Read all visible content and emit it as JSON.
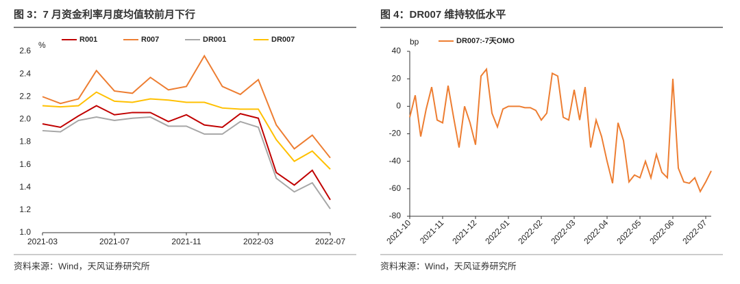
{
  "chart_data": [
    {
      "type": "line",
      "title": "图 3：7 月资金利率月度均值较前月下行",
      "source": "资料来源：Wind，天风证券研究所",
      "ylabel": "%",
      "categories": [
        "2021-03",
        null,
        null,
        null,
        "2021-07",
        null,
        null,
        null,
        "2021-11",
        null,
        null,
        null,
        "2022-03",
        null,
        null,
        null,
        "2022-07"
      ],
      "series": [
        {
          "name": "R001",
          "color": "#c00000",
          "values": [
            1.96,
            1.93,
            2.03,
            2.12,
            2.04,
            2.06,
            2.06,
            1.98,
            2.04,
            1.95,
            1.93,
            2.05,
            2.01,
            1.53,
            1.42,
            1.55,
            1.29
          ]
        },
        {
          "name": "R007",
          "color": "#ed7d31",
          "values": [
            2.2,
            2.14,
            2.18,
            2.43,
            2.25,
            2.23,
            2.37,
            2.26,
            2.29,
            2.56,
            2.29,
            2.22,
            2.35,
            1.95,
            1.74,
            1.86,
            1.66
          ]
        },
        {
          "name": "DR001",
          "color": "#a6a6a6",
          "values": [
            1.9,
            1.89,
            1.99,
            2.02,
            1.99,
            2.01,
            2.02,
            1.94,
            1.94,
            1.87,
            1.87,
            1.98,
            1.93,
            1.48,
            1.36,
            1.44,
            1.21
          ]
        },
        {
          "name": "DR007",
          "color": "#ffc000",
          "values": [
            2.12,
            2.11,
            2.12,
            2.24,
            2.16,
            2.15,
            2.18,
            2.17,
            2.15,
            2.15,
            2.1,
            2.09,
            2.09,
            1.82,
            1.63,
            1.72,
            1.56
          ]
        }
      ],
      "ylim": [
        1.0,
        2.6
      ],
      "yticks": [
        {
          "value": 1,
          "label": "1.0"
        },
        1.2,
        1.4,
        1.6,
        1.8,
        {
          "value": 2,
          "label": "2.0"
        },
        2.2,
        2.4,
        2.6
      ],
      "xlabel_rotation": 0,
      "grid": false
    },
    {
      "type": "line",
      "title": "图 4：DR007 维持较低水平",
      "source": "资料来源：Wind，天风证券研究所",
      "ylabel": "bp",
      "categories": [
        "2021-10",
        null,
        null,
        null,
        null,
        null,
        "2021-11",
        null,
        null,
        null,
        null,
        null,
        "2021-12",
        null,
        null,
        null,
        null,
        null,
        "2022-01",
        null,
        null,
        null,
        null,
        null,
        "2022-02",
        null,
        null,
        null,
        null,
        null,
        "2022-03",
        null,
        null,
        null,
        null,
        null,
        "2022-04",
        null,
        null,
        null,
        null,
        null,
        "2022-05",
        null,
        null,
        null,
        null,
        null,
        "2022-06",
        null,
        null,
        null,
        null,
        null,
        "2022-07",
        null
      ],
      "series": [
        {
          "name": "DR007:-7天OMO",
          "color": "#ed7d31",
          "values": [
            -8,
            8,
            -22,
            -2,
            14,
            -10,
            -12,
            15,
            -8,
            -30,
            0,
            -12,
            -28,
            22,
            27,
            -5,
            -15,
            -2,
            0,
            0,
            0,
            -1,
            -1,
            -3,
            -10,
            -5,
            24,
            22,
            -8,
            -10,
            12,
            -10,
            14,
            -30,
            -10,
            -22,
            -40,
            -56,
            -12,
            -25,
            -55,
            -50,
            -52,
            -40,
            -52,
            -35,
            -48,
            -52,
            20,
            -45,
            -55,
            -56,
            -52,
            -62,
            -55,
            -47
          ]
        }
      ],
      "ylim": [
        -80,
        40
      ],
      "yticks": [
        -80,
        -60,
        -40,
        -20,
        0,
        20,
        40
      ],
      "xlabel_rotation": -45,
      "grid": false
    }
  ]
}
